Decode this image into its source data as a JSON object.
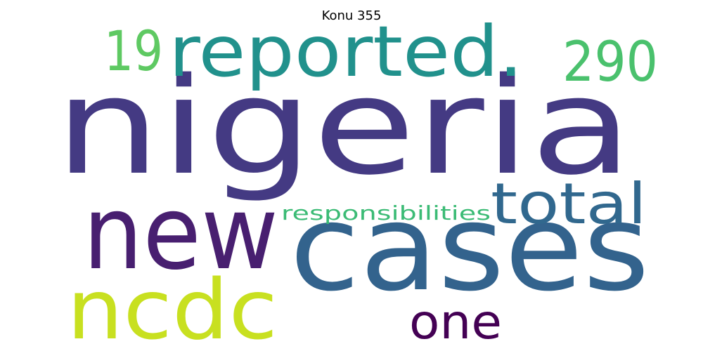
{
  "title": "Konu 355",
  "words": [
    {
      "text": "nigeria",
      "color": "#443a83"
    },
    {
      "text": "cases",
      "color": "#33638d"
    },
    {
      "text": "new",
      "color": "#481f70"
    },
    {
      "text": "reported.",
      "color": "#21918c"
    },
    {
      "text": "ncdc",
      "color": "#c8e020"
    },
    {
      "text": "total",
      "color": "#31688e"
    },
    {
      "text": "19",
      "color": "#5ec962"
    },
    {
      "text": "290",
      "color": "#4ac16d"
    },
    {
      "text": "one",
      "color": "#440154"
    },
    {
      "text": "responsibilities",
      "color": "#3bbb75"
    }
  ]
}
